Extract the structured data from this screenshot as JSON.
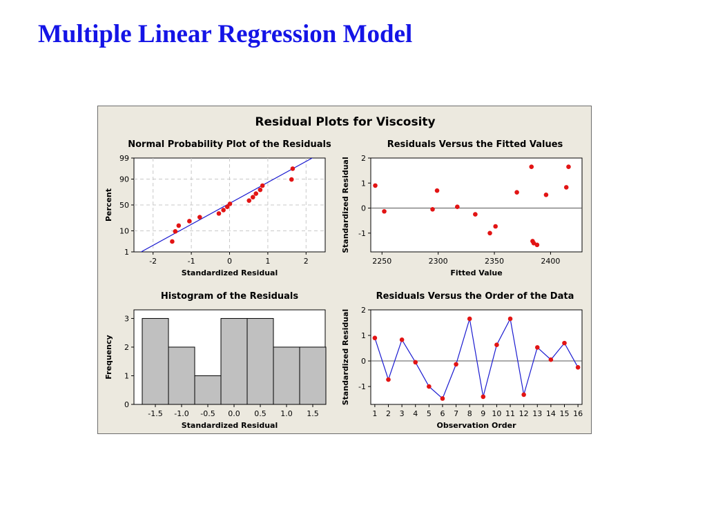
{
  "slide_title": "Multiple Linear Regression Model",
  "colors": {
    "title": "#1414e6",
    "point": "#e21414",
    "line": "#1a1ad0",
    "bar": "#c0c0c0",
    "background": "#ece9df"
  },
  "chart_data": {
    "title": "Residual Plots for Viscosity",
    "panels": [
      {
        "id": "npp",
        "type": "scatter",
        "title": "Normal Probability Plot of the Residuals",
        "xlabel": "Standardized Residual",
        "ylabel": "Percent",
        "xlim": [
          -2.5,
          2.5
        ],
        "xticks": [
          "-2",
          "-1",
          "0",
          "1",
          "2"
        ],
        "yscale": "normal-probability",
        "yticks": [
          "1",
          "10",
          "50",
          "90",
          "99"
        ],
        "ytick_values": [
          1,
          10,
          50,
          90,
          99
        ],
        "ylim": [
          1,
          99
        ],
        "grid": true,
        "fit_line": {
          "x": [
            -2.35,
            2.4
          ],
          "y": [
            0.9,
            99.5
          ]
        },
        "points": {
          "x": [
            -1.5,
            -1.42,
            -1.33,
            -1.05,
            -0.78,
            -0.28,
            -0.16,
            -0.06,
            0.01,
            0.51,
            0.61,
            0.69,
            0.8,
            0.86,
            1.62,
            1.65
          ],
          "y": [
            3.5,
            9.5,
            15.3,
            21.1,
            27.3,
            33.6,
            40.0,
            46.3,
            52.2,
            58.6,
            65.0,
            71.3,
            77.3,
            83.1,
            89.7,
            96.4
          ]
        }
      },
      {
        "id": "fitted",
        "type": "scatter",
        "title": "Residuals Versus the Fitted Values",
        "xlabel": "Fitted Value",
        "ylabel": "Standardized Residual",
        "xlim": [
          2240,
          2428
        ],
        "xticks": [
          "2250",
          "2300",
          "2350",
          "2400"
        ],
        "ylim": [
          -1.75,
          2.0
        ],
        "yticks": [
          "-1",
          "0",
          "1",
          "2"
        ],
        "reference_line": 0,
        "points": {
          "x": [
            2244,
            2252,
            2295,
            2299,
            2317,
            2333,
            2346,
            2351,
            2370,
            2383,
            2384,
            2385,
            2388,
            2396,
            2414,
            2416
          ],
          "y": [
            0.9,
            -0.13,
            -0.05,
            0.7,
            0.05,
            -0.25,
            -1.0,
            -0.73,
            0.63,
            1.65,
            -1.32,
            -1.4,
            -1.47,
            0.53,
            0.83,
            1.65
          ]
        }
      },
      {
        "id": "histogram",
        "type": "bar",
        "title": "Histogram of the Residuals",
        "xlabel": "Standardized Residual",
        "ylabel": "Frequency",
        "categories": [
          "-1.5",
          "-1.0",
          "-0.5",
          "0.0",
          "0.5",
          "1.0",
          "1.5"
        ],
        "values": [
          3,
          2,
          1,
          3,
          3,
          2,
          2
        ],
        "ylim": [
          0,
          3.3
        ],
        "yticks": [
          "0",
          "1",
          "2",
          "3"
        ]
      },
      {
        "id": "order",
        "type": "line",
        "title": "Residuals Versus the Order of the Data",
        "xlabel": "Observation Order",
        "ylabel": "Standardized Residual",
        "xlim": [
          0.7,
          16.3
        ],
        "xticks": [
          "1",
          "2",
          "3",
          "4",
          "5",
          "6",
          "7",
          "8",
          "9",
          "10",
          "11",
          "12",
          "13",
          "14",
          "15",
          "16"
        ],
        "ylim": [
          -1.7,
          2.0
        ],
        "yticks": [
          "-1",
          "0",
          "1",
          "2"
        ],
        "reference_line": 0,
        "x": [
          1,
          2,
          3,
          4,
          5,
          6,
          7,
          8,
          9,
          10,
          11,
          12,
          13,
          14,
          15,
          16
        ],
        "y": [
          0.9,
          -0.73,
          0.83,
          -0.05,
          -1.0,
          -1.47,
          -0.13,
          1.65,
          -1.4,
          0.63,
          1.65,
          -1.32,
          0.53,
          0.05,
          0.7,
          -0.25
        ]
      }
    ]
  }
}
